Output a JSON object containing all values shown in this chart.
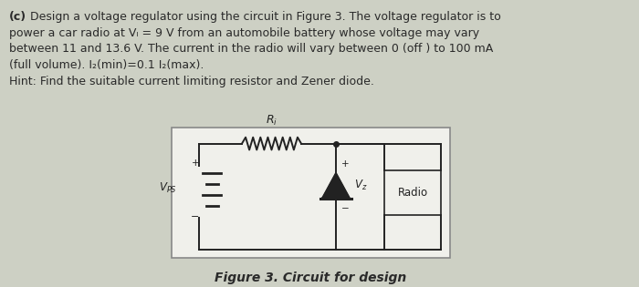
{
  "bg_color": "#cdd0c4",
  "text_color": "#2a2a2a",
  "circuit_bg": "#f0f0eb",
  "circuit_border": "#888888",
  "wire_color": "#222222",
  "figure_caption": "Figure 3. Circuit for design",
  "line1_bold": "(c)",
  "line1_normal": " Design a voltage regulator using the circuit in Figure 3. The voltage regulator is to",
  "line2": "power a car radio at Vₗ = 9 V from an automobile battery whose voltage may vary",
  "line3": "between 11 and 13.6 V. The current in the radio will vary between 0 (off ) to 100 mA",
  "line4": "(full volume). I₂(min)=0.1 I₂(max).",
  "line5": "Hint: Find the suitable current limiting resistor and Zener diode.",
  "fontsize_text": 9.0,
  "fontsize_circuit": 8.5
}
